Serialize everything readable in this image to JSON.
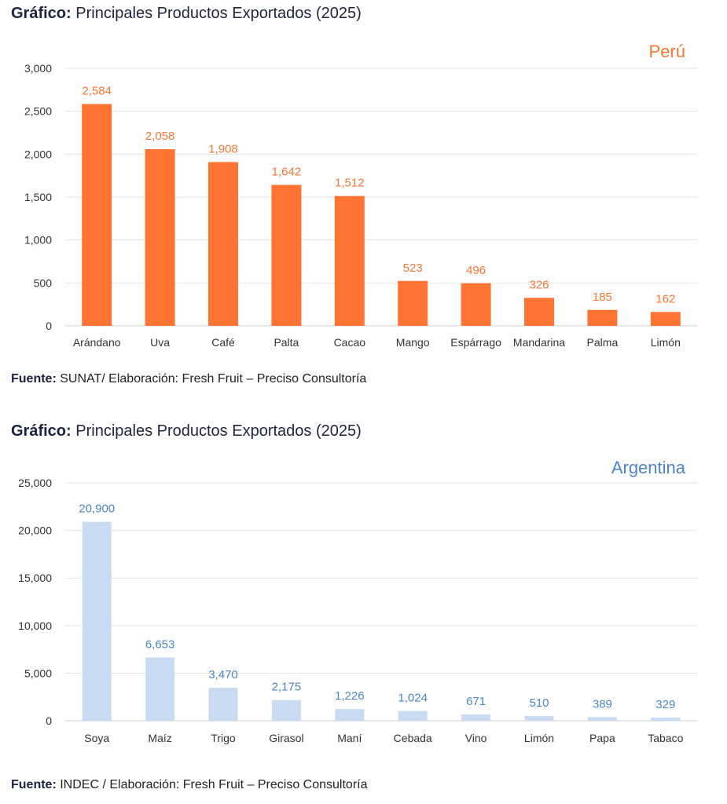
{
  "charts": [
    {
      "heading_bold": "Gráfico:",
      "heading_text": "Principales Productos Exportados (2025)",
      "source_bold": "Fuente:",
      "source_text": "SUNAT/ Elaboración: Fresh Fruit – Preciso Consultoría",
      "color": "#ff7433",
      "label_color": "#ff7433"
    },
    {
      "heading_bold": "Gráfico:",
      "heading_text": "Principales Productos Exportados (2025)",
      "source_bold": "Fuente:",
      "source_text": "INDEC / Elaboración: Fresh Fruit – Preciso Consultoría",
      "color": "#c9dbf2",
      "label_color": "#4b86c8"
    }
  ],
  "chart_data": [
    {
      "type": "bar",
      "title": "Perú",
      "categories": [
        "Arándano",
        "Uva",
        "Café",
        "Palta",
        "Cacao",
        "Mango",
        "Espárrago",
        "Mandarina",
        "Palma",
        "Limón"
      ],
      "values": [
        2584,
        2058,
        1908,
        1642,
        1512,
        523,
        496,
        326,
        185,
        162
      ],
      "value_labels": [
        "2,584",
        "2,058",
        "1,908",
        "1,642",
        "1,512",
        "523",
        "496",
        "326",
        "185",
        "162"
      ],
      "yticks": [
        0,
        500,
        1000,
        1500,
        2000,
        2500,
        3000
      ],
      "ytick_labels": [
        "0",
        "500",
        "1,000",
        "1,500",
        "2,000",
        "2,500",
        "3,000"
      ],
      "ylim": [
        0,
        3000
      ],
      "xlabel": "",
      "ylabel": "",
      "grid": true
    },
    {
      "type": "bar",
      "title": "Argentina",
      "categories": [
        "Soya",
        "Maíz",
        "Trigo",
        "Girasol",
        "Maní",
        "Cebada",
        "Vino",
        "Limón",
        "Papa",
        "Tabaco"
      ],
      "values": [
        20900,
        6653,
        3470,
        2175,
        1226,
        1024,
        671,
        510,
        389,
        329
      ],
      "value_labels": [
        "20,900",
        "6,653",
        "3,470",
        "2,175",
        "1,226",
        "1,024",
        "671",
        "510",
        "389",
        "329"
      ],
      "yticks": [
        0,
        5000,
        10000,
        15000,
        20000,
        25000
      ],
      "ytick_labels": [
        "0",
        "5,000",
        "10,000",
        "15,000",
        "20,000",
        "25,000"
      ],
      "ylim": [
        0,
        25000
      ],
      "xlabel": "",
      "ylabel": "",
      "grid": true
    }
  ]
}
